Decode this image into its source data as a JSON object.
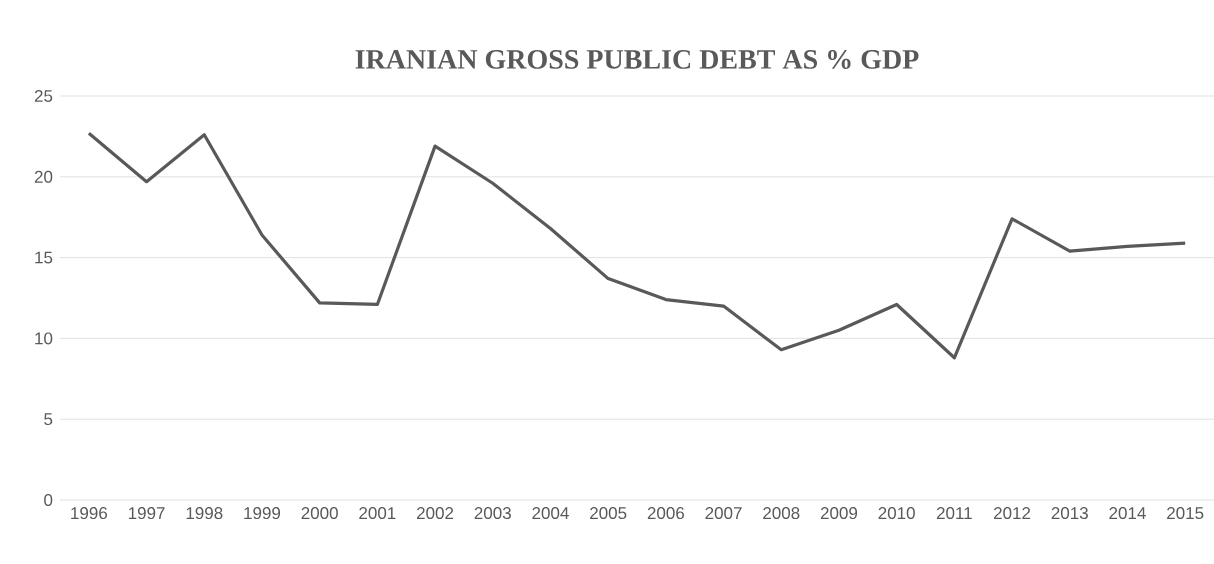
{
  "chart_data": {
    "type": "line",
    "title": "IRANIAN GROSS PUBLIC DEBT AS % GDP",
    "categories": [
      "1996",
      "1997",
      "1998",
      "1999",
      "2000",
      "2001",
      "2002",
      "2003",
      "2004",
      "2005",
      "2006",
      "2007",
      "2008",
      "2009",
      "2010",
      "2011",
      "2012",
      "2013",
      "2014",
      "2015"
    ],
    "values": [
      22.7,
      19.7,
      22.6,
      16.4,
      12.2,
      12.1,
      21.9,
      19.6,
      16.8,
      13.7,
      12.4,
      12.0,
      9.3,
      10.5,
      12.1,
      8.8,
      17.4,
      15.4,
      15.7,
      15.9
    ],
    "color": "#595959",
    "ylim": [
      0,
      25
    ],
    "yticks": [
      0,
      5,
      10,
      15,
      20,
      25
    ],
    "grid": "y",
    "marker": "none",
    "line_style": "solid"
  }
}
